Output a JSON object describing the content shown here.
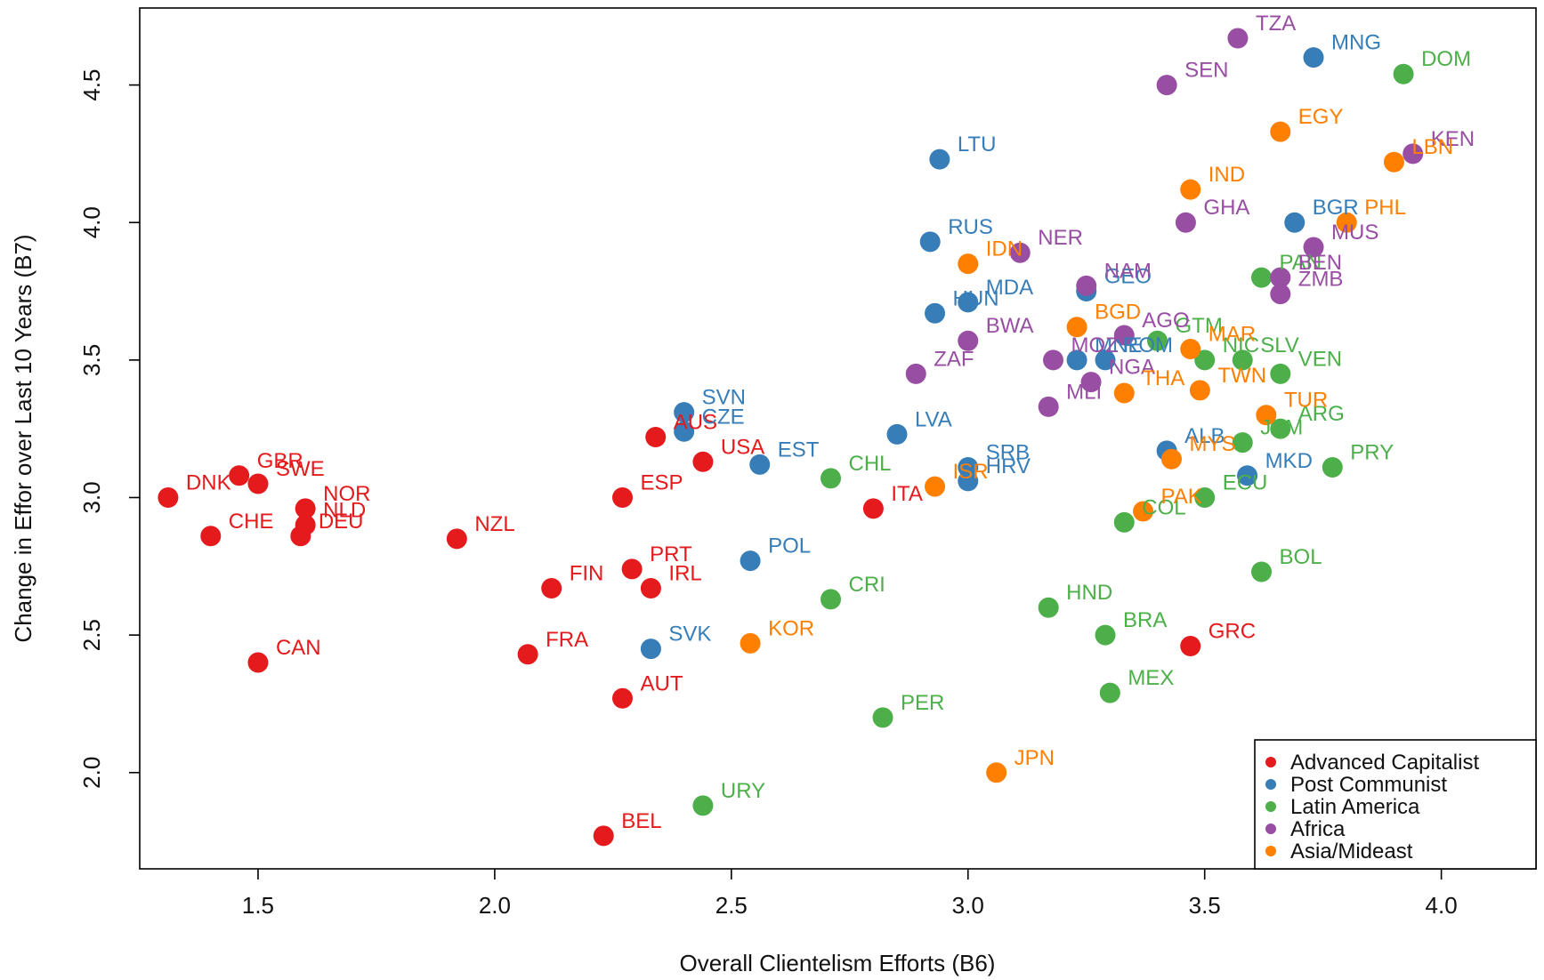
{
  "chart_data": {
    "type": "scatter",
    "title": "",
    "xlabel": "Overall Clientelism Efforts (B6)",
    "ylabel": "Change in Effor over Last 10 Years (B7)",
    "xlim": [
      1.25,
      4.2
    ],
    "ylim": [
      1.65,
      4.78
    ],
    "xticks": [
      1.5,
      2.0,
      2.5,
      3.0,
      3.5,
      4.0
    ],
    "xtick_labels": [
      "1.5",
      "2.0",
      "2.5",
      "3.0",
      "3.5",
      "4.0"
    ],
    "yticks": [
      2.0,
      2.5,
      3.0,
      3.5,
      4.0,
      4.5
    ],
    "ytick_labels": [
      "2.0",
      "2.5",
      "3.0",
      "3.5",
      "4.0",
      "4.5"
    ],
    "grid": false,
    "legend_position": "bottom-right",
    "series": [
      {
        "name": "Advanced Capitalist",
        "color": "#e41a1c",
        "points": [
          {
            "label": "DNK",
            "x": 1.31,
            "y": 3.0
          },
          {
            "label": "GBR",
            "x": 1.46,
            "y": 3.08
          },
          {
            "label": "SWE",
            "x": 1.5,
            "y": 3.05
          },
          {
            "label": "NOR",
            "x": 1.6,
            "y": 2.96
          },
          {
            "label": "NLD",
            "x": 1.6,
            "y": 2.9
          },
          {
            "label": "DEU",
            "x": 1.59,
            "y": 2.86
          },
          {
            "label": "CHE",
            "x": 1.4,
            "y": 2.86
          },
          {
            "label": "CAN",
            "x": 1.5,
            "y": 2.4
          },
          {
            "label": "NZL",
            "x": 1.92,
            "y": 2.85
          },
          {
            "label": "FIN",
            "x": 2.12,
            "y": 2.67
          },
          {
            "label": "FRA",
            "x": 2.07,
            "y": 2.43
          },
          {
            "label": "PRT",
            "x": 2.29,
            "y": 2.74
          },
          {
            "label": "IRL",
            "x": 2.33,
            "y": 2.67
          },
          {
            "label": "ESP",
            "x": 2.27,
            "y": 3.0
          },
          {
            "label": "AUT",
            "x": 2.27,
            "y": 2.27
          },
          {
            "label": "BEL",
            "x": 2.23,
            "y": 1.77
          },
          {
            "label": "AUS",
            "x": 2.34,
            "y": 3.22
          },
          {
            "label": "USA",
            "x": 2.44,
            "y": 3.13
          },
          {
            "label": "ITA",
            "x": 2.8,
            "y": 2.96
          },
          {
            "label": "GRC",
            "x": 3.47,
            "y": 2.46
          }
        ]
      },
      {
        "name": "Post Communist",
        "color": "#377eb8",
        "points": [
          {
            "label": "SVN",
            "x": 2.4,
            "y": 3.31
          },
          {
            "label": "CZE",
            "x": 2.4,
            "y": 3.24
          },
          {
            "label": "EST",
            "x": 2.56,
            "y": 3.12
          },
          {
            "label": "POL",
            "x": 2.54,
            "y": 2.77
          },
          {
            "label": "SVK",
            "x": 2.33,
            "y": 2.45
          },
          {
            "label": "LVA",
            "x": 2.85,
            "y": 3.23
          },
          {
            "label": "LTU",
            "x": 2.94,
            "y": 4.23
          },
          {
            "label": "RUS",
            "x": 2.92,
            "y": 3.93
          },
          {
            "label": "MDA",
            "x": 3.0,
            "y": 3.71
          },
          {
            "label": "HUN",
            "x": 2.93,
            "y": 3.67
          },
          {
            "label": "SRB",
            "x": 3.0,
            "y": 3.11
          },
          {
            "label": "HRV",
            "x": 3.0,
            "y": 3.06
          },
          {
            "label": "GEO",
            "x": 3.25,
            "y": 3.75
          },
          {
            "label": "MNE",
            "x": 3.23,
            "y": 3.5
          },
          {
            "label": "ROM",
            "x": 3.29,
            "y": 3.5
          },
          {
            "label": "ALB",
            "x": 3.42,
            "y": 3.17
          },
          {
            "label": "MKD",
            "x": 3.59,
            "y": 3.08
          },
          {
            "label": "BGR",
            "x": 3.69,
            "y": 4.0
          },
          {
            "label": "MNG",
            "x": 3.73,
            "y": 4.6
          }
        ]
      },
      {
        "name": "Latin America",
        "color": "#4daf4a",
        "points": [
          {
            "label": "CHL",
            "x": 2.71,
            "y": 3.07
          },
          {
            "label": "CRI",
            "x": 2.71,
            "y": 2.63
          },
          {
            "label": "PER",
            "x": 2.82,
            "y": 2.2
          },
          {
            "label": "URY",
            "x": 2.44,
            "y": 1.88
          },
          {
            "label": "HND",
            "x": 3.17,
            "y": 2.6
          },
          {
            "label": "BRA",
            "x": 3.29,
            "y": 2.5
          },
          {
            "label": "MEX",
            "x": 3.3,
            "y": 2.29
          },
          {
            "label": "COL",
            "x": 3.33,
            "y": 2.91
          },
          {
            "label": "ECU",
            "x": 3.5,
            "y": 3.0
          },
          {
            "label": "GTM",
            "x": 3.4,
            "y": 3.57
          },
          {
            "label": "NIC",
            "x": 3.5,
            "y": 3.5
          },
          {
            "label": "SLV",
            "x": 3.58,
            "y": 3.5
          },
          {
            "label": "VEN",
            "x": 3.66,
            "y": 3.45
          },
          {
            "label": "ARG",
            "x": 3.66,
            "y": 3.25
          },
          {
            "label": "JAM",
            "x": 3.58,
            "y": 3.2
          },
          {
            "label": "PRY",
            "x": 3.77,
            "y": 3.11
          },
          {
            "label": "BOL",
            "x": 3.62,
            "y": 2.73
          },
          {
            "label": "PAN",
            "x": 3.62,
            "y": 3.8
          },
          {
            "label": "DOM",
            "x": 3.92,
            "y": 4.54
          }
        ]
      },
      {
        "name": "Africa",
        "color": "#984ea3",
        "points": [
          {
            "label": "ZAF",
            "x": 2.89,
            "y": 3.45
          },
          {
            "label": "BWA",
            "x": 3.0,
            "y": 3.57
          },
          {
            "label": "NER",
            "x": 3.11,
            "y": 3.89
          },
          {
            "label": "NAM",
            "x": 3.25,
            "y": 3.77
          },
          {
            "label": "MOZ",
            "x": 3.18,
            "y": 3.5
          },
          {
            "label": "NGA",
            "x": 3.26,
            "y": 3.42
          },
          {
            "label": "MLI",
            "x": 3.17,
            "y": 3.33
          },
          {
            "label": "AGO",
            "x": 3.33,
            "y": 3.59
          },
          {
            "label": "GHA",
            "x": 3.46,
            "y": 4.0
          },
          {
            "label": "SEN",
            "x": 3.42,
            "y": 4.5
          },
          {
            "label": "TZA",
            "x": 3.57,
            "y": 4.67
          },
          {
            "label": "MUS",
            "x": 3.73,
            "y": 3.91
          },
          {
            "label": "BEN",
            "x": 3.66,
            "y": 3.8
          },
          {
            "label": "ZMB",
            "x": 3.66,
            "y": 3.74
          },
          {
            "label": "KEN",
            "x": 3.94,
            "y": 4.25
          }
        ]
      },
      {
        "name": "Asia/Mideast",
        "color": "#ff7f00",
        "points": [
          {
            "label": "IDN",
            "x": 3.0,
            "y": 3.85
          },
          {
            "label": "BGD",
            "x": 3.23,
            "y": 3.62
          },
          {
            "label": "MAR",
            "x": 3.47,
            "y": 3.54
          },
          {
            "label": "THA",
            "x": 3.33,
            "y": 3.38
          },
          {
            "label": "TWN",
            "x": 3.49,
            "y": 3.39
          },
          {
            "label": "TUR",
            "x": 3.63,
            "y": 3.3
          },
          {
            "label": "MYS",
            "x": 3.43,
            "y": 3.14
          },
          {
            "label": "PAK",
            "x": 3.37,
            "y": 2.95
          },
          {
            "label": "ISR",
            "x": 2.93,
            "y": 3.04
          },
          {
            "label": "KOR",
            "x": 2.54,
            "y": 2.47
          },
          {
            "label": "JPN",
            "x": 3.06,
            "y": 2.0
          },
          {
            "label": "IND",
            "x": 3.47,
            "y": 4.12
          },
          {
            "label": "EGY",
            "x": 3.66,
            "y": 4.33
          },
          {
            "label": "LBN",
            "x": 3.9,
            "y": 4.22
          },
          {
            "label": "PHL",
            "x": 3.8,
            "y": 4.0
          }
        ]
      }
    ]
  }
}
